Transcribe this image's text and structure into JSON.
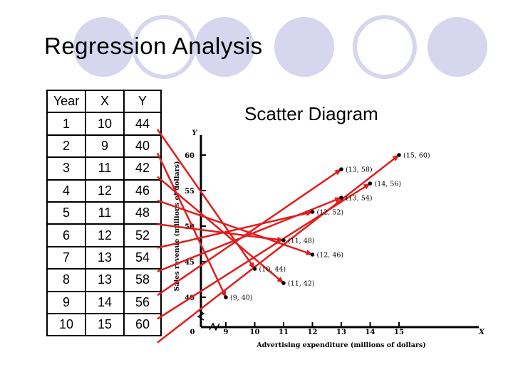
{
  "slide": {
    "title": "Regression Analysis",
    "subtitle": "Scatter Diagram",
    "accent_color": "#d6d6ee"
  },
  "table": {
    "headers": [
      "Year",
      "X",
      "Y"
    ],
    "rows": [
      [
        "1",
        "10",
        "44"
      ],
      [
        "2",
        "9",
        "40"
      ],
      [
        "3",
        "11",
        "42"
      ],
      [
        "4",
        "12",
        "46"
      ],
      [
        "5",
        "11",
        "48"
      ],
      [
        "6",
        "12",
        "52"
      ],
      [
        "7",
        "13",
        "54"
      ],
      [
        "8",
        "13",
        "58"
      ],
      [
        "9",
        "14",
        "56"
      ],
      [
        "10",
        "15",
        "60"
      ]
    ]
  },
  "chart_data": {
    "type": "scatter",
    "xlabel": "Advertising expenditure (millions of dollars)",
    "ylabel": "Sales revenue (millions of dollars)",
    "x_axis_letter": "X",
    "y_axis_letter": "Y",
    "x_ticks": [
      9,
      10,
      11,
      12,
      13,
      14,
      15
    ],
    "x_origin_label": "0",
    "y_ticks": [
      40,
      45,
      50,
      55,
      60
    ],
    "xlim": [
      8,
      16
    ],
    "ylim": [
      37,
      62
    ],
    "points": [
      {
        "x": 10,
        "y": 44,
        "label": "(10, 44)"
      },
      {
        "x": 9,
        "y": 40,
        "label": "(9, 40)"
      },
      {
        "x": 11,
        "y": 42,
        "label": "(11, 42)"
      },
      {
        "x": 12,
        "y": 46,
        "label": "(12, 46)"
      },
      {
        "x": 11,
        "y": 48,
        "label": "(11, 48)"
      },
      {
        "x": 12,
        "y": 52,
        "label": "(12, 52)"
      },
      {
        "x": 13,
        "y": 54,
        "label": "(13, 54)"
      },
      {
        "x": 13,
        "y": 58,
        "label": "(13, 58)"
      },
      {
        "x": 14,
        "y": 56,
        "label": "(14, 56)"
      },
      {
        "x": 15,
        "y": 60,
        "label": "(15, 60)"
      }
    ],
    "arrow_color": "#e21c1c"
  }
}
